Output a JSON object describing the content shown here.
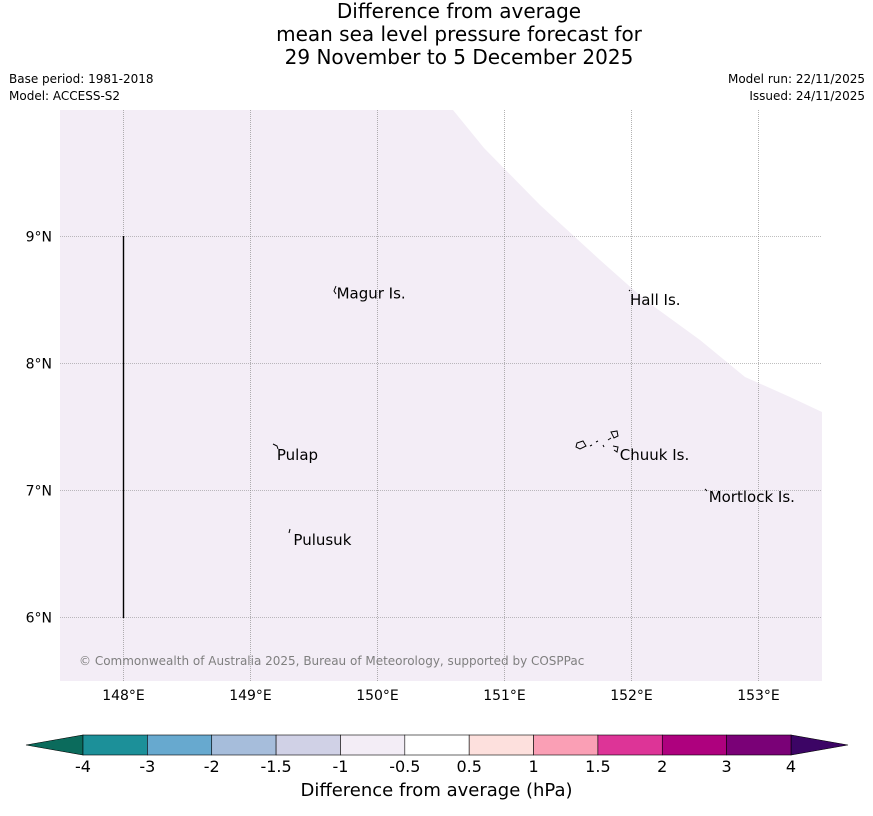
{
  "title": {
    "line1": "Difference from average",
    "line2": "mean sea level pressure forecast for",
    "line3": "29 November to 5 December 2025"
  },
  "meta": {
    "base_period": "Base period: 1981-2018",
    "model": "Model: ACCESS-S2",
    "model_run": "Model run: 22/11/2025",
    "issued": "Issued: 24/11/2025"
  },
  "map": {
    "lon_range": [
      147.5,
      153.5
    ],
    "lat_range": [
      5.5,
      10.0
    ],
    "lon_ticks": [
      148,
      149,
      150,
      151,
      152,
      153
    ],
    "lon_tick_labels": [
      "148°E",
      "149°E",
      "150°E",
      "151°E",
      "152°E",
      "153°E"
    ],
    "lat_ticks": [
      6,
      7,
      8,
      9
    ],
    "lat_tick_labels": [
      "6°N",
      "7°N",
      "8°N",
      "9°N"
    ],
    "fill_color": "#f3edf6",
    "places": [
      {
        "name": "Magur Is.",
        "lon": 149.67,
        "lat": 8.55
      },
      {
        "name": "Hall Is.",
        "lon": 151.98,
        "lat": 8.5
      },
      {
        "name": "Pulap",
        "lon": 149.2,
        "lat": 7.28
      },
      {
        "name": "Chuuk Is.",
        "lon": 151.9,
        "lat": 7.28
      },
      {
        "name": "Mortlock Is.",
        "lon": 152.6,
        "lat": 6.95
      },
      {
        "name": "Pulusuk",
        "lon": 149.33,
        "lat": 6.61
      }
    ],
    "copyright": "© Commonwealth of Australia 2025, Bureau of Meteorology, supported by COSPPac"
  },
  "colorbar": {
    "label": "Difference from average (hPa)",
    "tick_labels": [
      "-4",
      "-3",
      "-2",
      "-1.5",
      "-1",
      "-0.5",
      "0.5",
      "1",
      "1.5",
      "2",
      "3",
      "4"
    ],
    "under_color": "#0b6b5c",
    "over_color": "#3c0565",
    "colors": [
      "#1c9099",
      "#67a9cf",
      "#a6bddb",
      "#d0d1e6",
      "#f3edf6",
      "#ffffff",
      "#fde0dd",
      "#fa9fb5",
      "#dd3497",
      "#ae017e",
      "#7a0177"
    ]
  }
}
